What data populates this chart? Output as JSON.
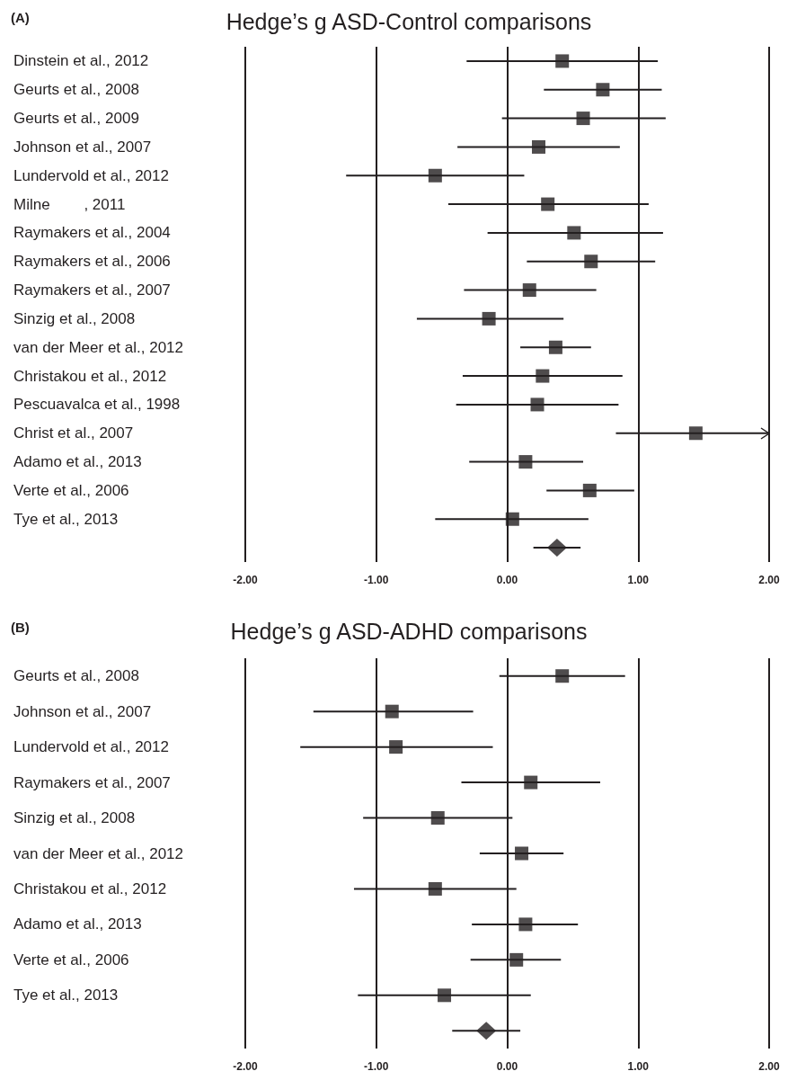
{
  "chart_data": [
    {
      "type": "scatter",
      "title": "Hedge’s g ASD-Control comparisons",
      "annotations": [
        "(A)"
      ],
      "categories": [
        "Dinstein et al., 2012",
        "Geurts et al., 2008",
        "Geurts et al., 2009",
        "Johnson et al., 2007",
        "Lundervold et al., 2012",
        "Milne        , 2011",
        "Raymakers et al., 2004",
        "Raymakers et al., 2006",
        "Raymakers et al., 2007",
        "Sinzig et al., 2008",
        "van der Meer et al., 2012",
        "Christakou et al., 2012",
        "Pescuavalca et al., 1998",
        "Christ et al., 2007",
        "Adamo et al., 2013",
        "Verte et al., 2006",
        "Tye et al., 2013",
        null
      ],
      "series": [
        {
          "color": "#231f20",
          "marker": "square",
          "values": [
            0.42,
            0.73,
            0.58,
            0.24,
            -0.55,
            0.31,
            0.51,
            0.64,
            0.17,
            -0.14,
            0.37,
            0.27,
            0.23,
            1.44,
            0.14,
            0.63,
            0.04,
            null
          ],
          "errors": [
            [
              -0.31,
              1.15
            ],
            [
              0.28,
              1.18
            ],
            [
              -0.04,
              1.21
            ],
            [
              -0.38,
              0.86
            ],
            [
              -1.23,
              0.13
            ],
            [
              -0.45,
              1.08
            ],
            [
              -0.15,
              1.19
            ],
            [
              0.15,
              1.13
            ],
            [
              -0.33,
              0.68
            ],
            [
              -0.69,
              0.43
            ],
            [
              0.1,
              0.64
            ],
            [
              -0.34,
              0.88
            ],
            [
              -0.39,
              0.85
            ],
            [
              0.83,
              2.0
            ],
            [
              -0.29,
              0.58
            ],
            [
              0.3,
              0.97
            ],
            [
              -0.55,
              0.62
            ],
            null
          ]
        },
        {
          "color": "#231f20",
          "marker": "diamond",
          "values": [
            null,
            null,
            null,
            null,
            null,
            null,
            null,
            null,
            null,
            null,
            null,
            null,
            null,
            null,
            null,
            null,
            null,
            0.38
          ],
          "errors": [
            null,
            null,
            null,
            null,
            null,
            null,
            null,
            null,
            null,
            null,
            null,
            null,
            null,
            null,
            null,
            null,
            null,
            [
              0.2,
              0.56
            ]
          ]
        }
      ],
      "xlim": [
        -2,
        2
      ],
      "xticks": [
        {
          "value": -2,
          "label": "-2.00"
        },
        {
          "value": -1,
          "label": "-1.00"
        },
        {
          "value": 0,
          "label": "0.00"
        },
        {
          "value": 1,
          "label": "1.00"
        },
        {
          "value": 2,
          "label": "2.00"
        }
      ],
      "grid": "x",
      "orientation": "horizontal"
    },
    {
      "type": "scatter",
      "title": "Hedge’s g ASD-ADHD comparisons",
      "annotations": [
        "(B)"
      ],
      "categories": [
        "Geurts et al., 2008",
        "Johnson et al., 2007",
        "Lundervold et al., 2012",
        "Raymakers et al., 2007",
        "Sinzig et al., 2008",
        "van der Meer et al., 2012",
        "Christakou et al., 2012",
        "Adamo et al., 2013",
        "Verte et al., 2006",
        "Tye et al., 2013",
        null
      ],
      "series": [
        {
          "color": "#231f20",
          "marker": "square",
          "values": [
            0.42,
            -0.88,
            -0.85,
            0.18,
            -0.53,
            0.11,
            -0.55,
            0.14,
            0.07,
            -0.48,
            null
          ],
          "errors": [
            [
              -0.06,
              0.9
            ],
            [
              -1.48,
              -0.26
            ],
            [
              -1.58,
              -0.11
            ],
            [
              -0.35,
              0.71
            ],
            [
              -1.1,
              0.04
            ],
            [
              -0.21,
              0.43
            ],
            [
              -1.17,
              0.07
            ],
            [
              -0.27,
              0.54
            ],
            [
              -0.28,
              0.41
            ],
            [
              -1.14,
              0.18
            ],
            null
          ]
        },
        {
          "color": "#231f20",
          "marker": "diamond",
          "values": [
            null,
            null,
            null,
            null,
            null,
            null,
            null,
            null,
            null,
            null,
            -0.16
          ],
          "errors": [
            null,
            null,
            null,
            null,
            null,
            null,
            null,
            null,
            null,
            null,
            [
              -0.42,
              0.1
            ]
          ]
        }
      ],
      "xlim": [
        -2,
        2
      ],
      "xticks": [
        {
          "value": -2,
          "label": "-2.00"
        },
        {
          "value": -1,
          "label": "-1.00"
        },
        {
          "value": 0,
          "label": "0.00"
        },
        {
          "value": 1,
          "label": "1.00"
        },
        {
          "value": 2,
          "label": "2.00"
        }
      ],
      "grid": "x",
      "orientation": "horizontal"
    }
  ]
}
